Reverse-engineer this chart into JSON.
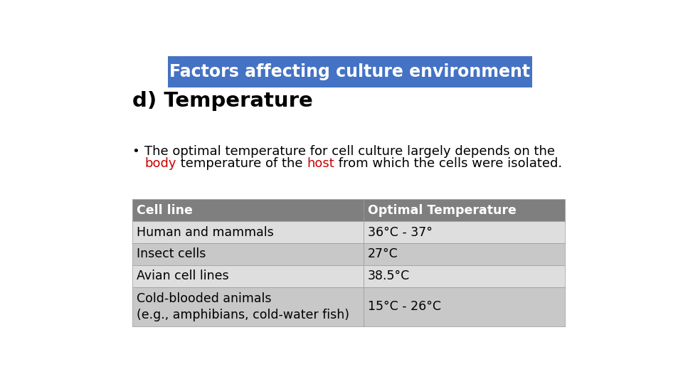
{
  "title": "Factors affecting culture environment",
  "title_bg_color": "#4472C4",
  "title_text_color": "#FFFFFF",
  "subtitle": "d) Temperature",
  "subtitle_color": "#000000",
  "bg_color": "#FFFFFF",
  "bullet_line1": "The optimal temperature for cell culture largely depends on the",
  "bullet_line2_parts": [
    {
      "text": "body",
      "color": "#CC0000"
    },
    {
      "text": " temperature of the ",
      "color": "#000000"
    },
    {
      "text": "host",
      "color": "#CC0000"
    },
    {
      "text": " from which the cells were isolated.",
      "color": "#000000"
    }
  ],
  "table_header": [
    "Cell line",
    "Optimal Temperature"
  ],
  "table_rows": [
    [
      "Human and mammals",
      "36°C - 37°"
    ],
    [
      "Insect cells",
      "27°C"
    ],
    [
      "Avian cell lines",
      "38.5°C"
    ],
    [
      "Cold-blooded animals\n(e.g., amphibians, cold-water fish)",
      "15°C - 26°C"
    ]
  ],
  "table_header_bg": "#7F7F7F",
  "table_row_bg_odd": "#C8C8C8",
  "table_row_bg_even": "#DEDEDE",
  "table_text_color": "#000000",
  "table_header_text_color": "#FFFFFF",
  "col_split": 0.535,
  "font_size_body": 13,
  "font_size_table": 12.5,
  "font_size_title": 17,
  "font_size_subtitle": 21
}
